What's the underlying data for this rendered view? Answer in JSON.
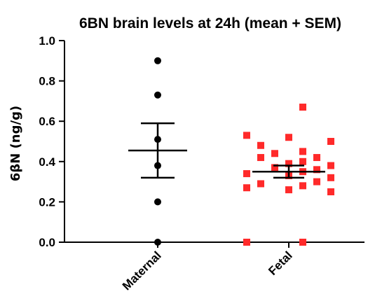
{
  "chart_data": {
    "type": "scatter",
    "title": "6BN brain levels at 24h (mean + SEM)",
    "ylabel": "6βN (ng/g)",
    "xlabel": "",
    "ylim": [
      0,
      1.0
    ],
    "yticks": [
      "0.0",
      "0.2",
      "0.4",
      "0.6",
      "0.8",
      "1.0"
    ],
    "categories": [
      "Maternal",
      "Fetal"
    ],
    "grid": false,
    "series": [
      {
        "category": "Maternal",
        "marker": "circle",
        "color": "#000000",
        "values": [
          0.9,
          0.73,
          0.51,
          0.38,
          0.2,
          0.0
        ],
        "mean": 0.455,
        "sem": 0.135
      },
      {
        "category": "Fetal",
        "marker": "square",
        "color": "#ff2a2a",
        "values": [
          0.67,
          0.53,
          0.52,
          0.5,
          0.48,
          0.45,
          0.44,
          0.42,
          0.42,
          0.4,
          0.39,
          0.38,
          0.37,
          0.36,
          0.35,
          0.34,
          0.33,
          0.32,
          0.3,
          0.29,
          0.28,
          0.27,
          0.26,
          0.25,
          0.0,
          0.0
        ],
        "mean": 0.35,
        "sem": 0.03
      }
    ]
  }
}
